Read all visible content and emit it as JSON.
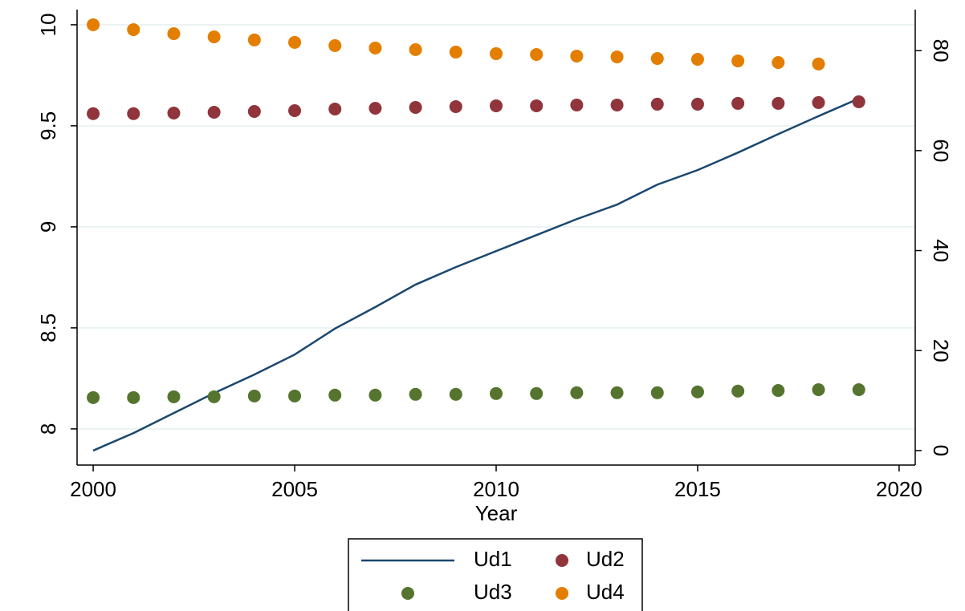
{
  "chart_data": {
    "type": "line",
    "x": [
      2000,
      2001,
      2002,
      2003,
      2004,
      2005,
      2006,
      2007,
      2008,
      2009,
      2010,
      2011,
      2012,
      2013,
      2014,
      2015,
      2016,
      2017,
      2018,
      2019
    ],
    "xlabel": "Year",
    "xlim": [
      1999.6,
      2020.4
    ],
    "xticks": [
      2000,
      2005,
      2010,
      2015,
      2020
    ],
    "ylim": [
      7.821,
      10.075
    ],
    "yticks": [
      8,
      8.5,
      9,
      9.5,
      10
    ],
    "y2lim": [
      -2.9,
      88.2
    ],
    "y2ticks": [
      0,
      20,
      40,
      60,
      80
    ],
    "grid": true,
    "legend": "bottom",
    "series": [
      {
        "name": "Ud1",
        "color": "#1a476f",
        "style": "line",
        "axis": "y2",
        "values": [
          0,
          3.5,
          7.5,
          11.5,
          15.2,
          19.2,
          24.4,
          28.7,
          33.2,
          36.7,
          39.9,
          43.1,
          46.3,
          49.2,
          53.2,
          56.1,
          59.6,
          63.3,
          66.9,
          70.4
        ]
      },
      {
        "name": "Ud2",
        "color": "#90353b",
        "style": "markers",
        "values": [
          9.56,
          9.56,
          9.563,
          9.567,
          9.571,
          9.575,
          9.583,
          9.587,
          9.591,
          9.595,
          9.599,
          9.599,
          9.603,
          9.603,
          9.607,
          9.607,
          9.611,
          9.611,
          9.615,
          9.619
        ]
      },
      {
        "name": "Ud3",
        "color": "#55752f",
        "style": "markers",
        "values": [
          8.155,
          8.155,
          8.159,
          8.159,
          8.163,
          8.163,
          8.167,
          8.167,
          8.171,
          8.171,
          8.175,
          8.175,
          8.179,
          8.179,
          8.179,
          8.183,
          8.187,
          8.19,
          8.194,
          8.194
        ]
      },
      {
        "name": "Ud4",
        "color": "#e37e00",
        "style": "markers",
        "values": [
          10,
          9.976,
          9.956,
          9.94,
          9.925,
          9.913,
          9.897,
          9.885,
          9.877,
          9.865,
          9.857,
          9.853,
          9.845,
          9.841,
          9.833,
          9.829,
          9.821,
          9.813,
          9.806,
          null
        ]
      }
    ]
  }
}
